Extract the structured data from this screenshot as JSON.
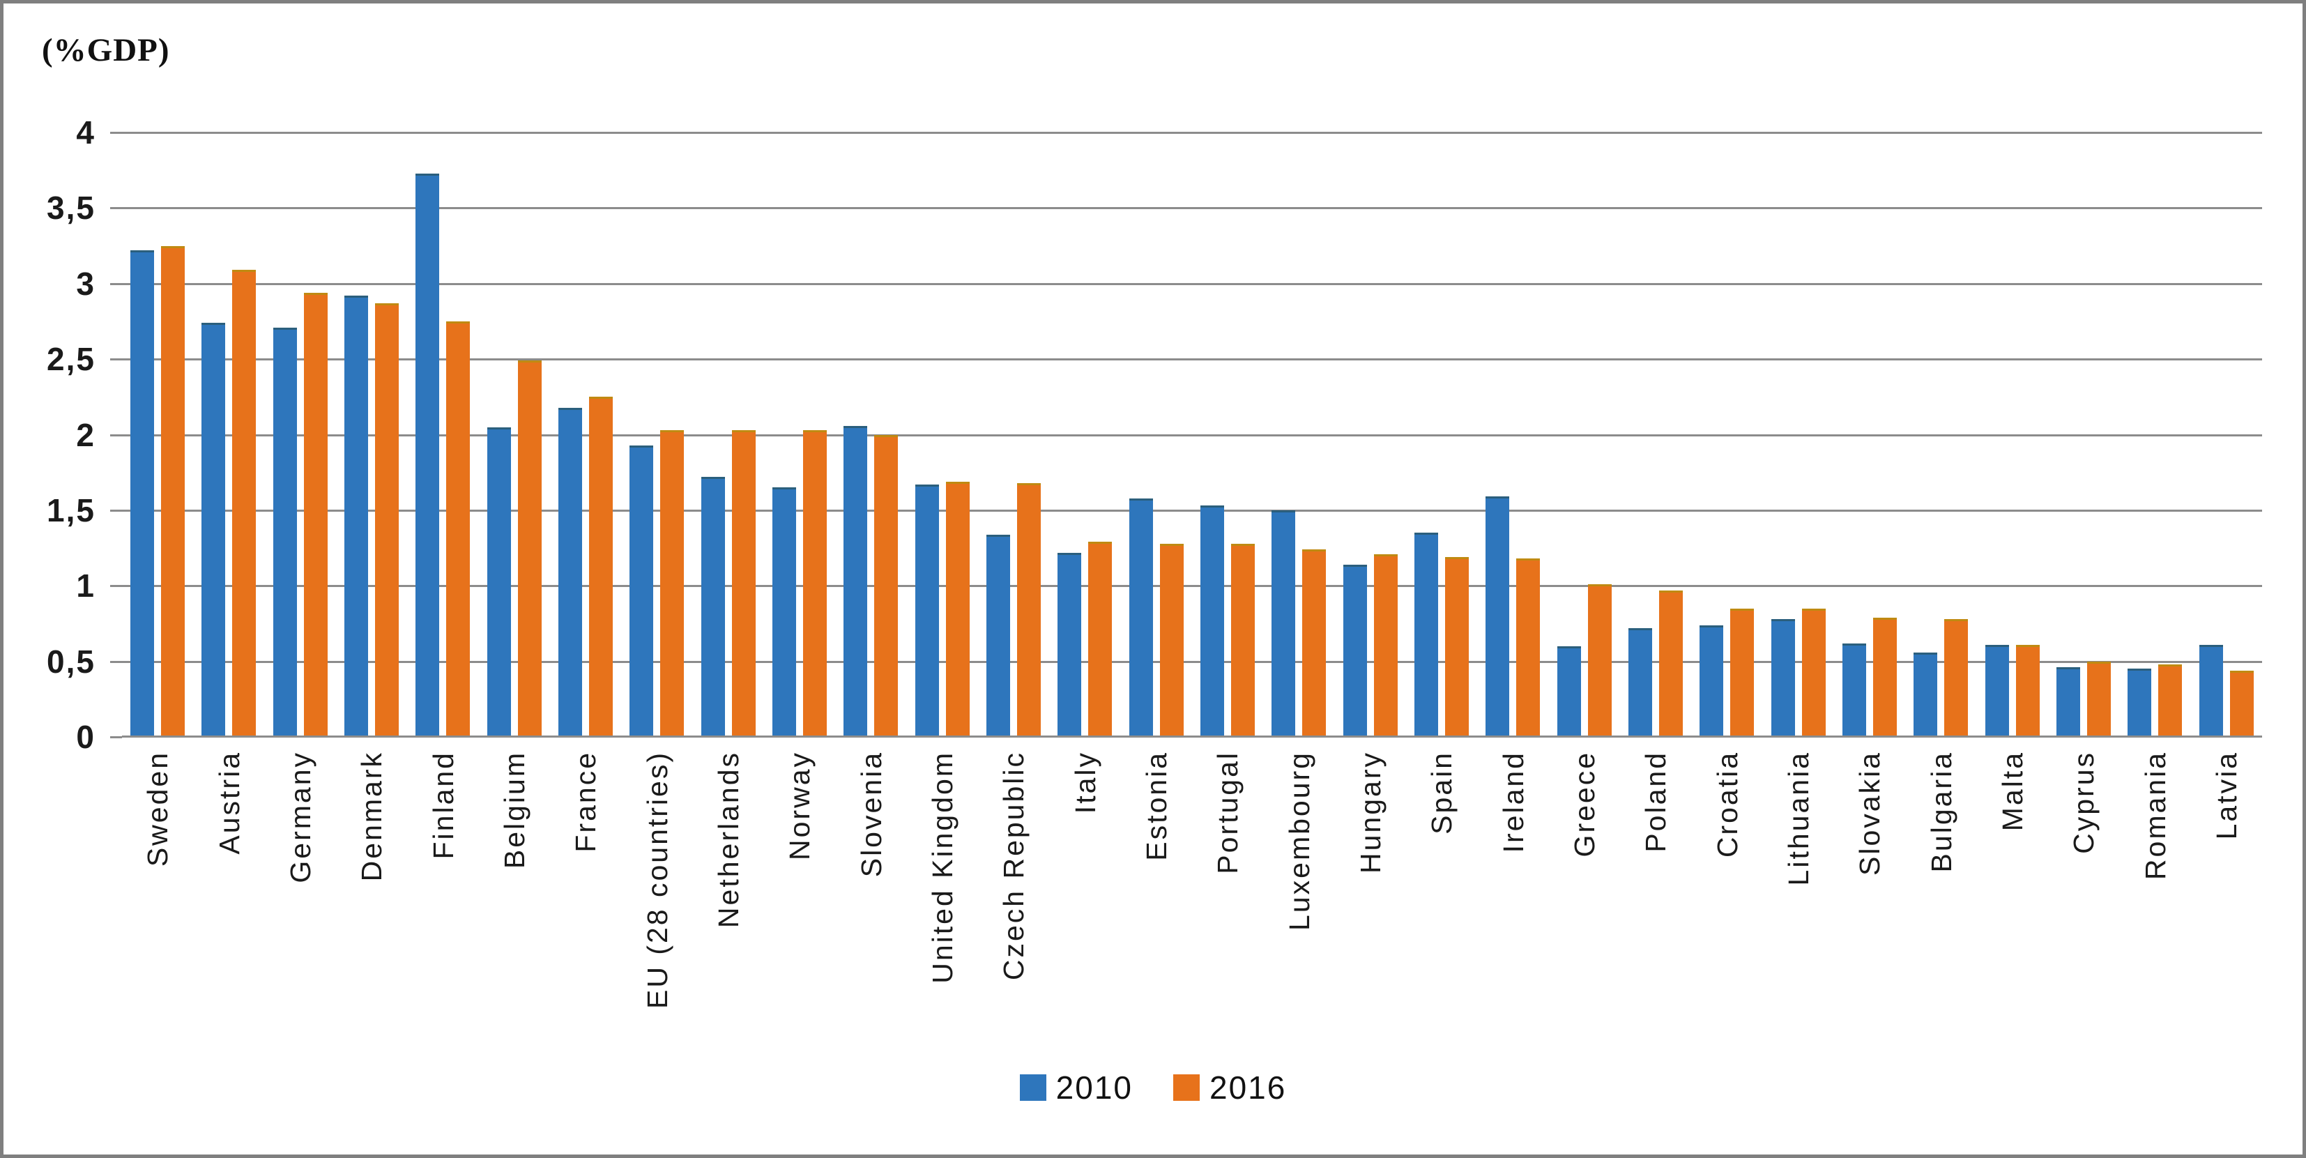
{
  "chart_data": {
    "type": "bar",
    "title": "(%GDP)",
    "categories": [
      "Sweden",
      "Austria",
      "Germany",
      "Denmark",
      "Finland",
      "Belgium",
      "France",
      "EU (28 countries)",
      "Netherlands",
      "Norway",
      "Slovenia",
      "United Kingdom",
      "Czech Republic",
      "Italy",
      "Estonia",
      "Portugal",
      "Luxembourg",
      "Hungary",
      "Spain",
      "Ireland",
      "Greece",
      "Poland",
      "Croatia",
      "Lithuania",
      "Slovakia",
      "Bulgaria",
      "Malta",
      "Cyprus",
      "Romania",
      "Latvia"
    ],
    "series": [
      {
        "name": "2010",
        "color": "#2e76bc",
        "values": [
          3.22,
          2.74,
          2.71,
          2.92,
          3.73,
          2.05,
          2.18,
          1.93,
          1.72,
          1.65,
          2.06,
          1.67,
          1.34,
          1.22,
          1.58,
          1.53,
          1.5,
          1.14,
          1.35,
          1.59,
          0.6,
          0.72,
          0.74,
          0.78,
          0.62,
          0.56,
          0.61,
          0.46,
          0.45,
          0.61
        ]
      },
      {
        "name": "2016",
        "color": "#e7721b",
        "values": [
          3.25,
          3.09,
          2.94,
          2.87,
          2.75,
          2.49,
          2.25,
          2.03,
          2.03,
          2.03,
          2.0,
          1.69,
          1.68,
          1.29,
          1.28,
          1.28,
          1.24,
          1.21,
          1.19,
          1.18,
          1.01,
          0.97,
          0.85,
          0.85,
          0.79,
          0.78,
          0.61,
          0.5,
          0.48,
          0.44
        ]
      }
    ],
    "xlabel": "",
    "ylabel": "(%GDP)",
    "ylim": [
      0,
      4
    ],
    "y_tick_step": 0.5,
    "y_tick_labels": [
      "0",
      "0,5",
      "1",
      "1,5",
      "2",
      "2,5",
      "3",
      "3,5",
      "4"
    ],
    "decimal_separator": ",",
    "grid": true,
    "gridline_color": "#8c8c8c",
    "legend_position": "bottom-center"
  }
}
